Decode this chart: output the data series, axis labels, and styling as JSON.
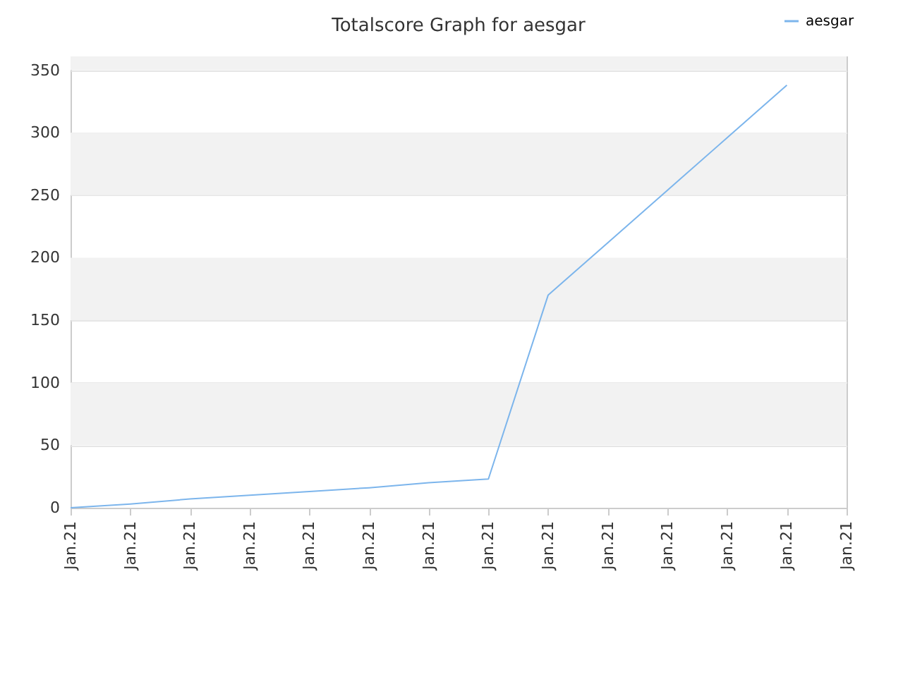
{
  "chart_data": {
    "type": "line",
    "title": "Totalscore Graph for aesgar",
    "categories": [
      "Jan.21",
      "Jan.21",
      "Jan.21",
      "Jan.21",
      "Jan.21",
      "Jan.21",
      "Jan.21",
      "Jan.21",
      "Jan.21",
      "Jan.21",
      "Jan.21",
      "Jan.21",
      "Jan.21",
      "Jan.21"
    ],
    "ylim": [
      0,
      361
    ],
    "yticks": [
      0,
      50,
      100,
      150,
      200,
      250,
      300,
      350
    ],
    "bands": [
      {
        "axis": "y",
        "from": 50,
        "to": 100,
        "color": "#f2f2f2"
      },
      {
        "axis": "y",
        "from": 150,
        "to": 200,
        "color": "#f2f2f2"
      },
      {
        "axis": "y",
        "from": 250,
        "to": 300,
        "color": "#f2f2f2"
      },
      {
        "axis": "y",
        "from": 350,
        "to": 361,
        "color": "#f2f2f2"
      }
    ],
    "series": [
      {
        "name": "aesgar",
        "color": "#7cb5ec",
        "values": [
          0,
          3,
          7,
          10,
          13,
          16,
          20,
          23,
          170,
          212,
          254,
          296,
          338,
          null
        ]
      }
    ],
    "grid": "y",
    "legend": "top right"
  }
}
